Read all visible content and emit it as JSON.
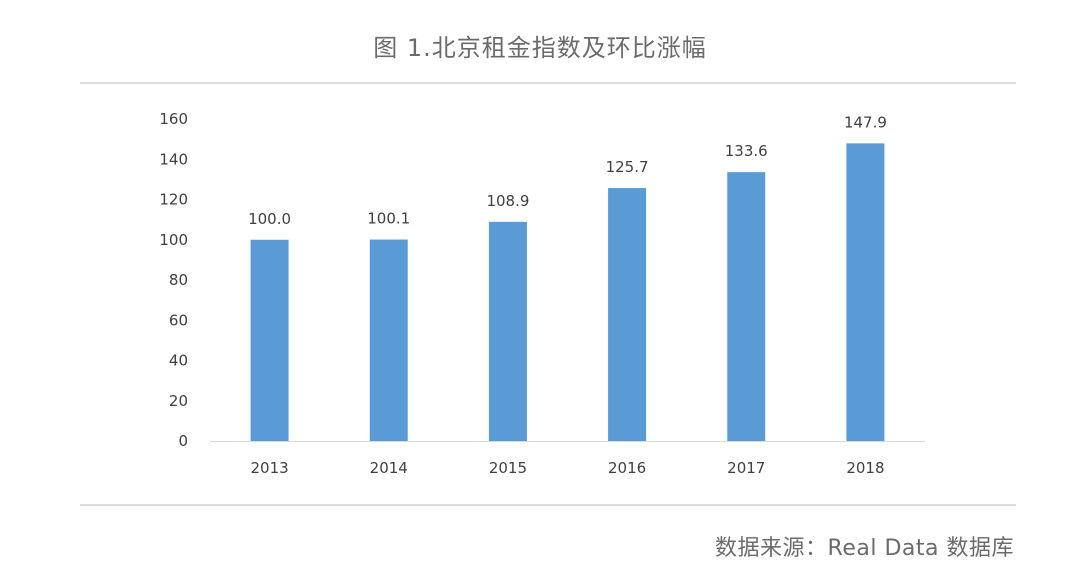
{
  "page": {
    "title": "图 1.北京租金指数及环比涨幅",
    "source": "数据来源：Real Data 数据库"
  },
  "chart_data": {
    "type": "bar",
    "categories": [
      "2013",
      "2014",
      "2015",
      "2016",
      "2017",
      "2018"
    ],
    "values": [
      100.0,
      100.1,
      108.9,
      125.7,
      133.6,
      147.9
    ],
    "value_labels": [
      "100.0",
      "100.1",
      "108.9",
      "125.7",
      "133.6",
      "147.9"
    ],
    "title": "图 1.北京租金指数及环比涨幅",
    "xlabel": "",
    "ylabel": "",
    "ylim": [
      0,
      160
    ],
    "yticks": [
      0,
      20,
      40,
      60,
      80,
      100,
      120,
      140,
      160
    ],
    "grid": false,
    "legend": "none",
    "bar_color": "#5b9bd5",
    "axis_color": "#d9d9d9",
    "text_color": "#404040"
  }
}
